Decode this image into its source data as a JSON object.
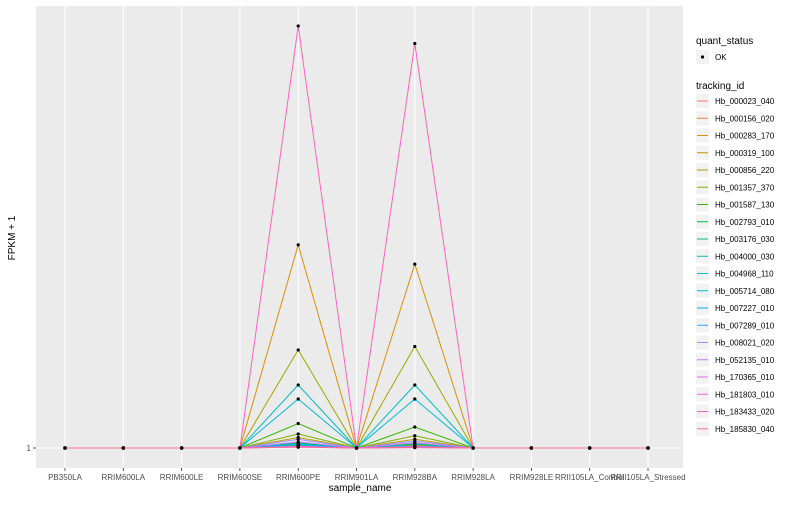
{
  "chart_data": {
    "type": "line",
    "title": "",
    "xlabel": "sample_name",
    "ylabel": "FPKM + 1",
    "y_ticks": [
      1
    ],
    "ylim": [
      0.85,
      26
    ],
    "categories": [
      "PB350LA",
      "RRIM600LA",
      "RRIM600LE",
      "RRIM600SE",
      "RRIM600PE",
      "RRIM901LA",
      "RRIM928BA",
      "RRIM928LA",
      "RRIM928LE",
      "RRII105LA_Control",
      "RRII105LA_Stressed"
    ],
    "point_legend": {
      "title": "quant_status",
      "items": [
        "OK"
      ]
    },
    "legend_title": "tracking_id",
    "legend_position": "right",
    "grid": true,
    "series": [
      {
        "name": "Hb_000023_040",
        "color": "#F8766D",
        "values": [
          1,
          1,
          1,
          1,
          1.1,
          1,
          1.05,
          1,
          1,
          1,
          1
        ]
      },
      {
        "name": "Hb_000156_020",
        "color": "#EA8331",
        "values": [
          1,
          1,
          1,
          1,
          1.2,
          1,
          1.15,
          1,
          1,
          1,
          1
        ]
      },
      {
        "name": "Hb_000283_170",
        "color": "#D89000",
        "values": [
          1,
          1,
          1,
          1,
          12.6,
          1,
          11.5,
          1,
          1,
          1,
          1
        ]
      },
      {
        "name": "Hb_000319_100",
        "color": "#C09B00",
        "values": [
          1,
          1,
          1,
          1,
          1.6,
          1,
          1.5,
          1,
          1,
          1,
          1
        ]
      },
      {
        "name": "Hb_000856_220",
        "color": "#A3A500",
        "values": [
          1,
          1,
          1,
          1,
          6.6,
          1,
          6.8,
          1,
          1,
          1,
          1
        ]
      },
      {
        "name": "Hb_001357_370",
        "color": "#7CAE00",
        "values": [
          1,
          1,
          1,
          1,
          1.8,
          1,
          1.7,
          1,
          1,
          1,
          1
        ]
      },
      {
        "name": "Hb_001587_130",
        "color": "#39B600",
        "values": [
          1,
          1,
          1,
          1,
          2.4,
          1,
          2.2,
          1,
          1,
          1,
          1
        ]
      },
      {
        "name": "Hb_002793_010",
        "color": "#00BB4E",
        "values": [
          1,
          1,
          1,
          1,
          1.3,
          1,
          1.25,
          1,
          1,
          1,
          1
        ]
      },
      {
        "name": "Hb_003176_030",
        "color": "#00BF7D",
        "values": [
          1,
          1,
          1,
          1,
          1.15,
          1,
          1.1,
          1,
          1,
          1,
          1
        ]
      },
      {
        "name": "Hb_004000_030",
        "color": "#00C1A3",
        "values": [
          1,
          1,
          1,
          1,
          1.25,
          1,
          1.2,
          1,
          1,
          1,
          1
        ]
      },
      {
        "name": "Hb_004968_110",
        "color": "#00BFC4",
        "values": [
          1,
          1,
          1,
          1,
          4.6,
          1,
          4.6,
          1,
          1,
          1,
          1
        ]
      },
      {
        "name": "Hb_005714_080",
        "color": "#00BAE0",
        "values": [
          1,
          1,
          1,
          1,
          3.8,
          1,
          3.8,
          1,
          1,
          1,
          1
        ]
      },
      {
        "name": "Hb_007227_010",
        "color": "#00B0F6",
        "values": [
          1,
          1,
          1,
          1,
          1.2,
          1,
          1.1,
          1,
          1,
          1,
          1
        ]
      },
      {
        "name": "Hb_007289_010",
        "color": "#35A2FF",
        "values": [
          1,
          1,
          1,
          1,
          1.1,
          1,
          1.05,
          1,
          1,
          1,
          1
        ]
      },
      {
        "name": "Hb_008021_020",
        "color": "#9590FF",
        "values": [
          1,
          1,
          1,
          1,
          1.5,
          1,
          1.4,
          1,
          1,
          1,
          1
        ]
      },
      {
        "name": "Hb_052135_010",
        "color": "#C77CFF",
        "values": [
          1,
          1,
          1,
          1,
          1.35,
          1,
          1.3,
          1,
          1,
          1,
          1
        ]
      },
      {
        "name": "Hb_170365_010",
        "color": "#E76BF3",
        "values": [
          1,
          1,
          1,
          1,
          1.05,
          1,
          1.02,
          1,
          1,
          1,
          1
        ]
      },
      {
        "name": "Hb_181803_010",
        "color": "#FA62DB",
        "values": [
          1,
          1,
          1,
          1,
          1.1,
          1,
          1.08,
          1,
          1,
          1,
          1
        ]
      },
      {
        "name": "Hb_183433_020",
        "color": "#FF62BC",
        "values": [
          1,
          1,
          1,
          1,
          25.1,
          1,
          24.1,
          1,
          1,
          1,
          1
        ]
      },
      {
        "name": "Hb_185830_040",
        "color": "#FF6C91",
        "values": [
          1,
          1,
          1,
          1,
          1.05,
          1,
          1.03,
          1,
          1,
          1,
          1
        ]
      }
    ]
  }
}
